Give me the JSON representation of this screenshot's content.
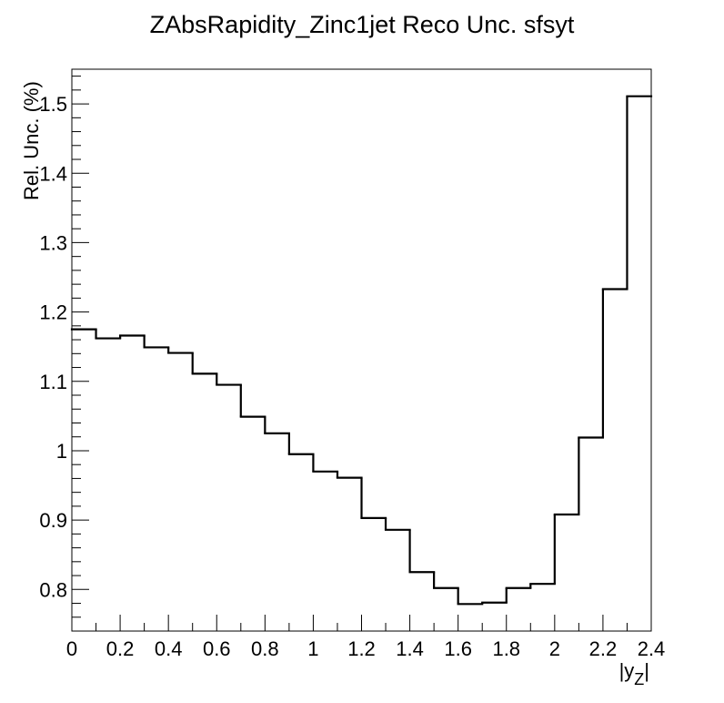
{
  "chart_data": {
    "type": "step",
    "title": "ZAbsRapidity_Zinc1jet Reco Unc. sfsyt",
    "xlabel": "|y",
    "xlabel_subscript": "Z",
    "xlabel_end": "|",
    "ylabel": "Rel. Unc. (%)",
    "xlim": [
      0,
      2.4
    ],
    "ylim": [
      0.74,
      1.55
    ],
    "x_ticks": [
      0,
      0.2,
      0.4,
      0.6,
      0.8,
      1,
      1.2,
      1.4,
      1.6,
      1.8,
      2,
      2.2,
      2.4
    ],
    "x_tick_labels": [
      "0",
      "0.2",
      "0.4",
      "0.6",
      "0.8",
      "1",
      "1.2",
      "1.4",
      "1.6",
      "1.8",
      "2",
      "2.2",
      "2.4"
    ],
    "y_ticks": [
      0.8,
      0.9,
      1.0,
      1.1,
      1.2,
      1.3,
      1.4,
      1.5
    ],
    "y_tick_labels": [
      "0.8",
      "0.9",
      "1",
      "1.1",
      "1.2",
      "1.3",
      "1.4",
      "1.5"
    ],
    "bin_edges": [
      0,
      0.1,
      0.2,
      0.3,
      0.4,
      0.5,
      0.6,
      0.7,
      0.8,
      0.9,
      1.0,
      1.1,
      1.2,
      1.3,
      1.4,
      1.5,
      1.6,
      1.7,
      1.8,
      1.9,
      2.0,
      2.1,
      2.2,
      2.3,
      2.4
    ],
    "values": [
      1.175,
      1.162,
      1.166,
      1.149,
      1.141,
      1.111,
      1.095,
      1.049,
      1.025,
      0.995,
      0.97,
      0.961,
      0.903,
      0.886,
      0.825,
      0.802,
      0.779,
      0.781,
      0.802,
      0.808,
      0.908,
      1.019,
      1.233,
      1.511
    ]
  }
}
